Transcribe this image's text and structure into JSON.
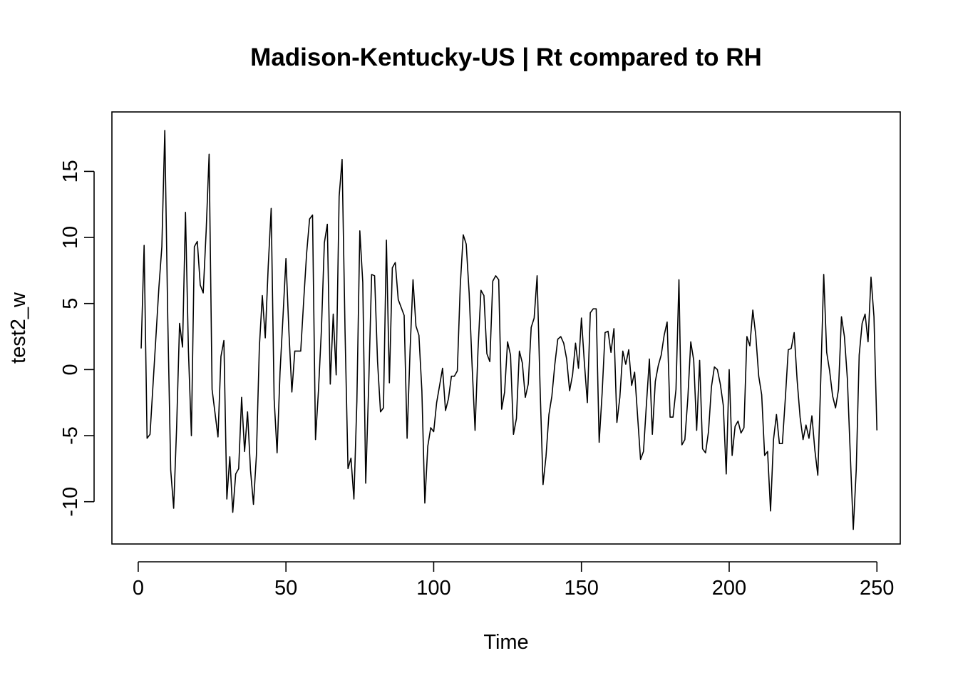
{
  "chart_data": {
    "type": "line",
    "title": "Madison-Kentucky-US | Rt compared to RH",
    "xlabel": "Time",
    "ylabel": "test2_w",
    "xlim": [
      -8.9,
      257.9
    ],
    "ylim": [
      -13.2,
      19.5
    ],
    "x_ticks": [
      0,
      50,
      100,
      150,
      200,
      250
    ],
    "y_ticks": [
      -10,
      -5,
      0,
      5,
      10,
      15
    ],
    "x_tick_labels": [
      "0",
      "50",
      "100",
      "150",
      "200",
      "250"
    ],
    "y_tick_labels": [
      "-10",
      "-5",
      "0",
      "5",
      "10",
      "15"
    ],
    "grid": false,
    "line_color": "#000000",
    "series": [
      {
        "x_start": 1,
        "x_step": 1,
        "values": [
          1.6,
          9.4,
          -5.2,
          -4.9,
          -1.2,
          2.5,
          6.2,
          9.3,
          18.1,
          3.9,
          -7.6,
          -10.5,
          -4.4,
          3.5,
          1.7,
          11.9,
          1.4,
          -5.0,
          9.3,
          9.7,
          6.4,
          5.8,
          10.5,
          16.3,
          -1.5,
          -3.3,
          -5.1,
          1.0,
          2.2,
          -9.8,
          -6.6,
          -10.8,
          -7.9,
          -7.5,
          -2.1,
          -6.2,
          -3.2,
          -7.6,
          -10.2,
          -6.5,
          1.7,
          5.6,
          2.4,
          7.8,
          12.2,
          -2.2,
          -6.3,
          -0.2,
          4.0,
          8.4,
          2.9,
          -1.7,
          1.4,
          1.4,
          1.4,
          5.2,
          8.8,
          11.4,
          11.7,
          -5.3,
          -1.6,
          3.0,
          9.6,
          11.0,
          -1.1,
          4.2,
          -0.4,
          13.1,
          15.9,
          2.9,
          -7.5,
          -6.7,
          -9.8,
          -2.4,
          10.5,
          6.6,
          -8.6,
          -1.2,
          7.2,
          7.1,
          0.6,
          -3.2,
          -2.9,
          9.8,
          -1.0,
          7.7,
          8.1,
          5.3,
          4.7,
          4.1,
          -5.2,
          1.4,
          6.8,
          3.3,
          2.6,
          -1.6,
          -10.1,
          -5.8,
          -4.4,
          -4.7,
          -2.5,
          -1.2,
          0.1,
          -3.1,
          -2.2,
          -0.5,
          -0.5,
          -0.1,
          6.4,
          10.2,
          9.5,
          5.8,
          0.3,
          -4.6,
          1.5,
          6.0,
          5.6,
          1.2,
          0.6,
          6.7,
          7.1,
          6.8,
          -3.0,
          -1.7,
          2.1,
          1.1,
          -4.9,
          -3.7,
          1.4,
          0.5,
          -2.1,
          -1.1,
          3.2,
          3.9,
          7.1,
          -1.3,
          -8.7,
          -6.6,
          -3.4,
          -2.0,
          0.4,
          2.3,
          2.5,
          2.0,
          0.8,
          -1.6,
          -0.4,
          2.0,
          0.1,
          3.9,
          0.5,
          -2.5,
          4.3,
          4.6,
          4.6,
          -5.5,
          -1.8,
          2.8,
          2.9,
          1.3,
          3.1,
          -4.0,
          -2.1,
          1.4,
          0.4,
          1.5,
          -1.2,
          -0.2,
          -3.5,
          -6.8,
          -6.2,
          -2.6,
          0.8,
          -4.9,
          -0.9,
          0.3,
          1.1,
          2.6,
          3.6,
          -3.6,
          -3.6,
          -1.5,
          6.8,
          -5.7,
          -5.3,
          -2.2,
          2.1,
          0.7,
          -4.6,
          0.7,
          -6.0,
          -6.3,
          -4.7,
          -1.3,
          0.2,
          0.0,
          -1.1,
          -2.7,
          -7.9,
          0.0,
          -6.5,
          -4.3,
          -3.9,
          -4.8,
          -4.4,
          2.5,
          1.8,
          4.5,
          2.6,
          -0.5,
          -1.9,
          -6.5,
          -6.2,
          -10.7,
          -5.3,
          -3.4,
          -5.6,
          -5.6,
          -2.2,
          1.5,
          1.6,
          2.8,
          -0.8,
          -3.6,
          -5.3,
          -4.2,
          -5.2,
          -3.5,
          -6.1,
          -8.0,
          -0.7,
          7.2,
          1.3,
          -0.1,
          -2.0,
          -2.9,
          -1.5,
          4.0,
          2.5,
          -0.7,
          -6.5,
          -12.1,
          -7.6,
          1.1,
          3.5,
          4.2,
          2.1,
          7.0,
          4.0,
          -4.6
        ]
      }
    ]
  }
}
